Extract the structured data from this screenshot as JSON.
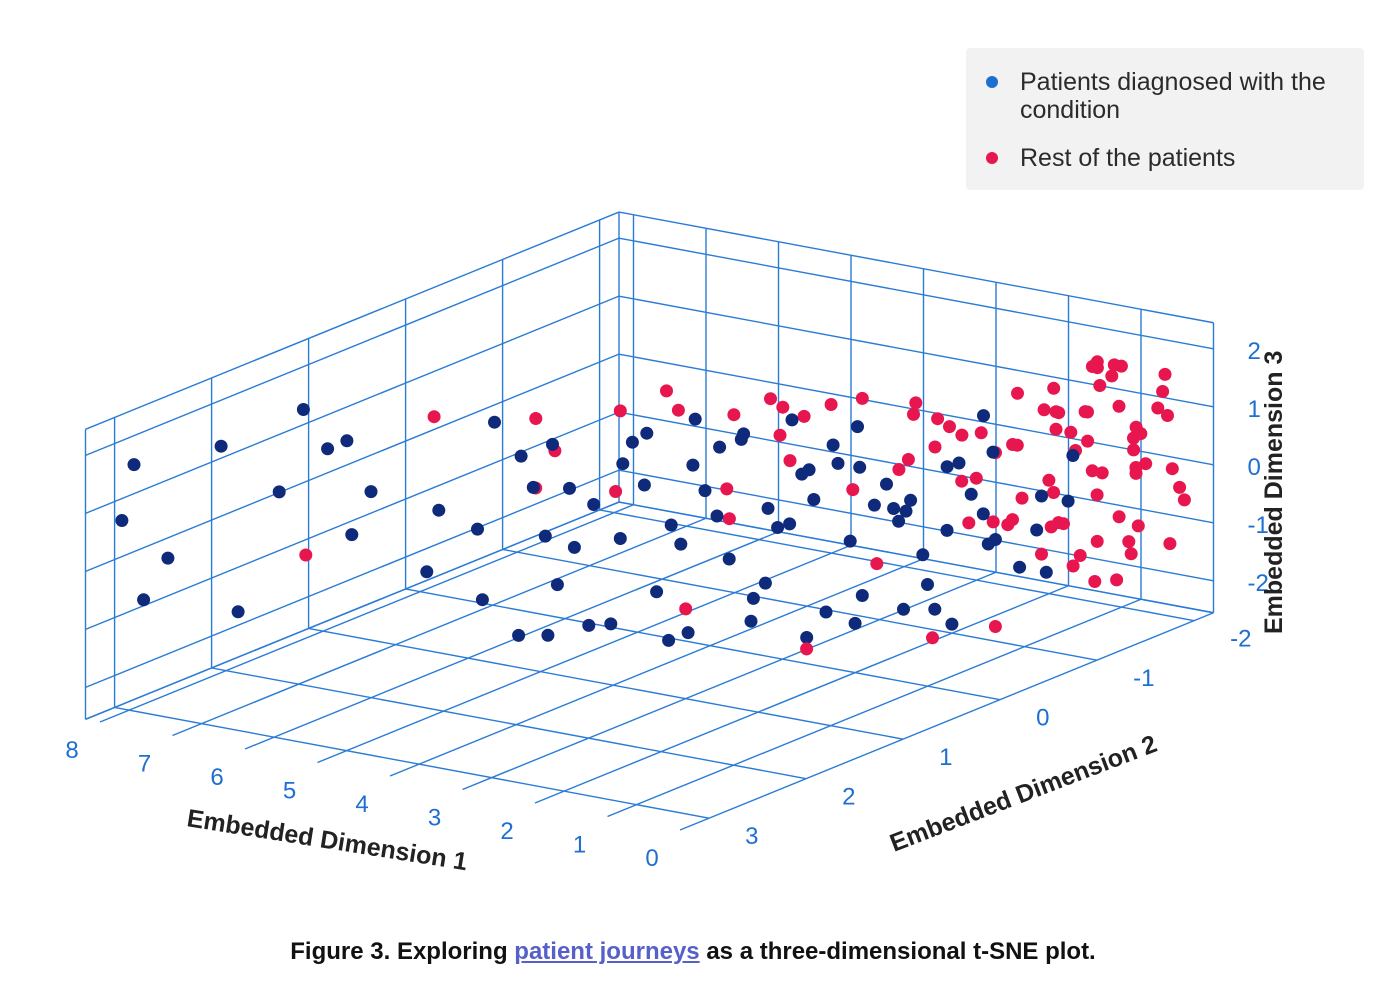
{
  "legend": {
    "items": [
      {
        "label": "Patients diagnosed with the condition",
        "color": "#0f2a7a",
        "marker_color": "#1f6fd1"
      },
      {
        "label": "Rest of the patients",
        "color": "#e8164e"
      }
    ]
  },
  "caption": {
    "prefix": "Figure 3.  Exploring ",
    "link": "patient journeys",
    "suffix": " as a three-dimensional t-SNE plot."
  },
  "chart_data": {
    "type": "scatter",
    "projection": "3d",
    "grid": true,
    "legend_position": "top-right",
    "xlabel": "Embedded Dimension 1",
    "ylabel": "Embedded Dimension 2",
    "zlabel": "Embedded Dimension 3",
    "xticks": [
      0,
      1,
      2,
      3,
      4,
      5,
      6,
      7,
      8
    ],
    "yticks": [
      -2,
      -1,
      0,
      1,
      2,
      3
    ],
    "zticks": [
      -2,
      -1,
      0,
      1,
      2
    ],
    "xlim": [
      0,
      8
    ],
    "ylim": [
      -2,
      3
    ],
    "zlim": [
      -2,
      2.5
    ],
    "series": [
      {
        "name": "Patients diagnosed with the condition",
        "color": "#0f2a7a",
        "points": [
          [
            8.2,
            2.8,
            1.5
          ],
          [
            8.5,
            2.7,
            0.4
          ],
          [
            7.8,
            3.0,
            -0.6
          ],
          [
            8.0,
            2.6,
            -0.2
          ],
          [
            7.4,
            2.5,
            1.8
          ],
          [
            7.3,
            2.4,
            -1.1
          ],
          [
            7.0,
            2.2,
            0.9
          ],
          [
            6.8,
            2.1,
            2.3
          ],
          [
            6.6,
            2.0,
            1.6
          ],
          [
            6.2,
            2.1,
            1.9
          ],
          [
            6.4,
            1.9,
            0.1
          ],
          [
            5.6,
            2.3,
            1.3
          ],
          [
            5.5,
            1.8,
            -0.4
          ],
          [
            5.2,
            1.9,
            0.8
          ],
          [
            5.0,
            1.6,
            -0.9
          ],
          [
            4.8,
            1.8,
            0.5
          ],
          [
            4.6,
            1.5,
            1.6
          ],
          [
            4.5,
            1.6,
            -1.4
          ],
          [
            4.4,
            1.4,
            0.2
          ],
          [
            4.2,
            1.3,
            1.0
          ],
          [
            4.1,
            1.5,
            -0.5
          ],
          [
            4.0,
            1.2,
            0.7
          ],
          [
            3.8,
            1.4,
            -1.2
          ],
          [
            3.6,
            1.1,
            1.8
          ],
          [
            3.5,
            1.3,
            0.3
          ],
          [
            3.4,
            1.0,
            -0.8
          ],
          [
            3.3,
            1.2,
            1.2
          ],
          [
            3.2,
            0.9,
            0.0
          ],
          [
            3.1,
            1.1,
            -1.5
          ],
          [
            3.0,
            0.8,
            0.9
          ],
          [
            2.9,
            1.0,
            1.5
          ],
          [
            2.8,
            0.7,
            -0.3
          ],
          [
            2.7,
            0.9,
            0.6
          ],
          [
            2.6,
            0.6,
            -1.0
          ],
          [
            2.5,
            0.8,
            1.9
          ],
          [
            2.4,
            0.5,
            0.2
          ],
          [
            2.3,
            0.7,
            -0.6
          ],
          [
            2.2,
            0.4,
            1.1
          ],
          [
            2.1,
            0.6,
            0.4
          ],
          [
            2.0,
            0.3,
            -1.3
          ],
          [
            1.9,
            0.5,
            0.8
          ],
          [
            1.8,
            0.2,
            -0.1
          ],
          [
            1.7,
            0.4,
            1.4
          ],
          [
            1.6,
            0.1,
            0.5
          ],
          [
            1.5,
            0.3,
            -0.9
          ],
          [
            1.4,
            0.0,
            0.2
          ],
          [
            1.3,
            0.2,
            1.0
          ],
          [
            1.2,
            -0.1,
            -0.4
          ],
          [
            1.1,
            0.1,
            0.7
          ],
          [
            1.0,
            -0.2,
            0.0
          ],
          [
            0.9,
            0.0,
            -1.2
          ],
          [
            0.8,
            -0.3,
            0.6
          ],
          [
            0.7,
            -0.1,
            1.3
          ],
          [
            0.6,
            -0.4,
            -0.2
          ],
          [
            0.5,
            -0.2,
            0.4
          ],
          [
            0.4,
            -0.5,
            -0.7
          ],
          [
            3.9,
            1.7,
            2.1
          ],
          [
            3.0,
            1.4,
            2.3
          ],
          [
            2.6,
            1.2,
            2.5
          ],
          [
            2.2,
            1.0,
            2.2
          ],
          [
            1.8,
            0.8,
            2.4
          ],
          [
            1.5,
            0.6,
            1.9
          ],
          [
            3.5,
            0.6,
            -1.8
          ],
          [
            2.9,
            0.4,
            -1.6
          ],
          [
            2.4,
            0.2,
            -1.9
          ],
          [
            2.0,
            0.0,
            -1.7
          ],
          [
            1.6,
            -0.2,
            -1.5
          ],
          [
            1.2,
            -0.4,
            -1.8
          ],
          [
            4.9,
            1.0,
            -1.9
          ],
          [
            4.3,
            0.8,
            -1.7
          ],
          [
            1.0,
            0.7,
            1.7
          ],
          [
            0.8,
            0.5,
            0.9
          ],
          [
            0.6,
            0.3,
            -0.5
          ],
          [
            0.9,
            -0.6,
            1.1
          ],
          [
            0.5,
            -0.8,
            0.3
          ],
          [
            0.3,
            -0.7,
            -0.9
          ],
          [
            1.4,
            -0.5,
            0.8
          ],
          [
            1.1,
            -0.7,
            -0.6
          ],
          [
            1.7,
            -0.3,
            0.1
          ],
          [
            2.1,
            -0.1,
            1.6
          ],
          [
            2.5,
            0.1,
            0.9
          ],
          [
            2.8,
            0.3,
            0.3
          ],
          [
            3.2,
            0.5,
            1.4
          ],
          [
            3.6,
            0.7,
            0.1
          ],
          [
            4.0,
            0.9,
            1.2
          ],
          [
            4.4,
            1.1,
            -0.2
          ],
          [
            4.7,
            1.3,
            0.9
          ],
          [
            5.1,
            1.4,
            2.0
          ],
          [
            0.2,
            -0.9,
            1.0
          ],
          [
            0.4,
            -1.0,
            0.1
          ],
          [
            0.7,
            -0.9,
            -0.4
          ],
          [
            1.3,
            -0.8,
            1.5
          ]
        ]
      },
      {
        "name": "Rest of the patients",
        "color": "#e8164e",
        "points": [
          [
            0.2,
            -1.6,
            0.9
          ],
          [
            0.4,
            -1.8,
            0.2
          ],
          [
            0.1,
            -1.5,
            -0.6
          ],
          [
            0.3,
            -1.9,
            1.4
          ],
          [
            0.5,
            -1.7,
            -1.1
          ],
          [
            0.0,
            -1.4,
            0.5
          ],
          [
            0.6,
            -1.6,
            1.8
          ],
          [
            0.2,
            -2.0,
            -0.3
          ],
          [
            0.8,
            -1.5,
            0.7
          ],
          [
            0.1,
            -1.8,
            1.1
          ],
          [
            0.4,
            -1.3,
            -0.8
          ],
          [
            0.7,
            -1.9,
            0.3
          ],
          [
            0.9,
            -1.7,
            1.5
          ],
          [
            0.3,
            -1.2,
            -1.4
          ],
          [
            0.6,
            -1.4,
            2.1
          ],
          [
            1.0,
            -1.8,
            -0.1
          ],
          [
            0.2,
            -1.1,
            0.6
          ],
          [
            0.5,
            -2.0,
            1.0
          ],
          [
            0.8,
            -1.2,
            -0.5
          ],
          [
            1.1,
            -1.6,
            0.4
          ],
          [
            0.0,
            -1.7,
            1.9
          ],
          [
            0.4,
            -1.5,
            -1.6
          ],
          [
            0.7,
            -1.1,
            1.2
          ],
          [
            1.2,
            -1.4,
            0.0
          ],
          [
            0.3,
            -1.6,
            0.8
          ],
          [
            0.9,
            -1.9,
            -0.9
          ],
          [
            0.1,
            -1.3,
            1.6
          ],
          [
            1.3,
            -1.7,
            0.6
          ],
          [
            0.6,
            -1.0,
            0.2
          ],
          [
            1.0,
            -1.3,
            1.7
          ],
          [
            0.2,
            -1.9,
            -1.2
          ],
          [
            1.4,
            -1.5,
            1.1
          ],
          [
            0.5,
            -0.9,
            -0.3
          ],
          [
            0.8,
            -1.6,
            2.0
          ],
          [
            1.1,
            -1.0,
            0.9
          ],
          [
            0.3,
            -2.0,
            0.0
          ],
          [
            1.5,
            -1.2,
            -0.7
          ],
          [
            0.7,
            -1.4,
            1.3
          ],
          [
            0.0,
            -1.0,
            0.3
          ],
          [
            1.6,
            -1.8,
            0.8
          ],
          [
            0.4,
            -1.2,
            1.5
          ],
          [
            0.9,
            -0.8,
            -0.2
          ],
          [
            1.2,
            -1.9,
            1.6
          ],
          [
            0.1,
            -0.9,
            -0.7
          ],
          [
            1.7,
            -1.4,
            0.5
          ],
          [
            0.6,
            -1.8,
            -1.4
          ],
          [
            1.0,
            -0.7,
            1.0
          ],
          [
            1.8,
            -1.1,
            0.1
          ],
          [
            0.2,
            -1.4,
            2.2
          ],
          [
            1.3,
            -0.9,
            -0.4
          ],
          [
            0.8,
            -2.0,
            0.6
          ],
          [
            1.9,
            -1.6,
            1.2
          ],
          [
            0.5,
            -0.6,
            0.4
          ],
          [
            1.4,
            -1.7,
            -1.0
          ],
          [
            0.3,
            -0.8,
            1.8
          ],
          [
            2.0,
            -1.3,
            0.7
          ],
          [
            1.1,
            -0.5,
            -0.1
          ],
          [
            0.7,
            -1.7,
            1.9
          ],
          [
            1.6,
            -0.8,
            0.3
          ],
          [
            0.0,
            -1.9,
            -0.4
          ],
          [
            2.2,
            -1.0,
            1.1
          ],
          [
            1.0,
            -1.5,
            -1.5
          ],
          [
            1.5,
            -0.6,
            1.4
          ],
          [
            0.4,
            -1.7,
            0.1
          ],
          [
            2.4,
            -1.4,
            0.5
          ],
          [
            1.8,
            -0.4,
            0.9
          ],
          [
            0.9,
            -1.1,
            -1.0
          ],
          [
            2.1,
            -0.7,
            1.6
          ],
          [
            2.6,
            -0.9,
            0.2
          ],
          [
            1.3,
            -0.3,
            1.3
          ],
          [
            2.8,
            -1.2,
            0.9
          ],
          [
            2.3,
            -0.2,
            0.4
          ],
          [
            3.0,
            -0.5,
            1.5
          ],
          [
            1.7,
            0.0,
            -0.6
          ],
          [
            2.9,
            0.2,
            2.1
          ],
          [
            3.3,
            -0.3,
            0.6
          ],
          [
            2.5,
            0.4,
            1.7
          ],
          [
            3.6,
            0.1,
            -0.2
          ],
          [
            1.9,
            0.6,
            2.3
          ],
          [
            3.8,
            -0.6,
            1.2
          ],
          [
            4.2,
            0.3,
            2.0
          ],
          [
            2.7,
            0.8,
            1.0
          ],
          [
            4.5,
            0.6,
            0.4
          ],
          [
            3.1,
            1.0,
            2.4
          ],
          [
            5.2,
            0.9,
            1.7
          ],
          [
            3.4,
            0.7,
            -1.3
          ],
          [
            4.8,
            1.2,
            0.8
          ],
          [
            5.8,
            1.5,
            2.0
          ],
          [
            6.9,
            2.0,
            -0.3
          ],
          [
            2.0,
            0.5,
            -1.8
          ],
          [
            1.2,
            -0.2,
            -1.9
          ],
          [
            0.6,
            -0.4,
            -1.7
          ],
          [
            3.5,
            1.3,
            2.5
          ],
          [
            2.2,
            1.1,
            2.6
          ],
          [
            4.0,
            1.6,
            1.9
          ],
          [
            1.5,
            0.3,
            2.5
          ]
        ]
      }
    ]
  }
}
